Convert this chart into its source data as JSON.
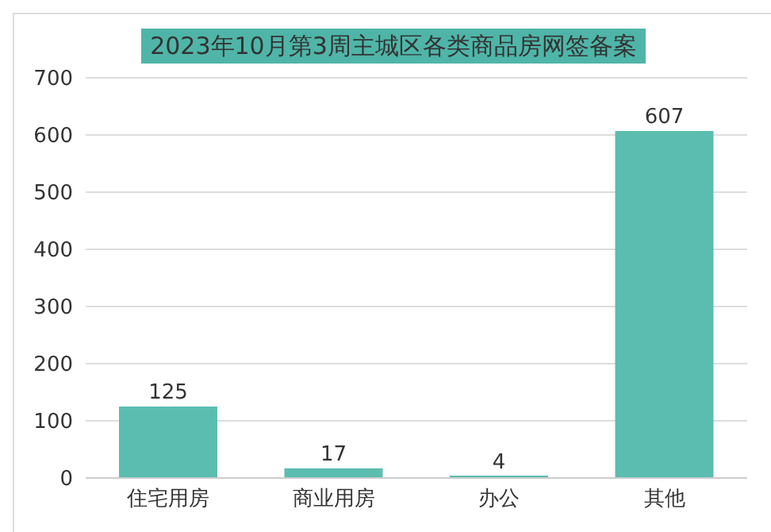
{
  "chart_data": {
    "type": "bar",
    "title": "2023年10月第3周主城区各类商品房网签备案",
    "categories": [
      "住宅用房",
      "商业用房",
      "办公",
      "其他"
    ],
    "values": [
      125,
      17,
      4,
      607
    ],
    "color": "#5bbdb0",
    "ylim": [
      0,
      700
    ],
    "yticks": [
      0,
      100,
      200,
      300,
      400,
      500,
      600,
      700
    ],
    "grid": "y",
    "data_labels": true
  }
}
